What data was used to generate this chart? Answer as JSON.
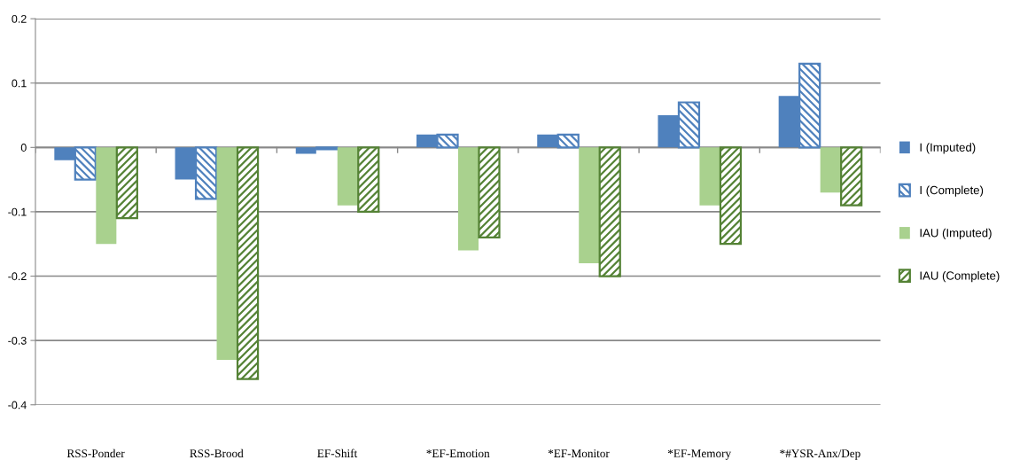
{
  "chart_data": {
    "type": "bar",
    "categories": [
      "RSS-Ponder",
      "RSS-Brood",
      "EF-Shift",
      "*EF-Emotion",
      "*EF-Monitor",
      "*EF-Memory",
      "*#YSR-Anx/Dep"
    ],
    "series": [
      {
        "name": "I (Imputed)",
        "color": "#4f81bd",
        "values": [
          -0.02,
          -0.05,
          -0.01,
          0.02,
          0.02,
          0.05,
          0.08
        ]
      },
      {
        "name": "I (Complete)",
        "color": "#4f81bd",
        "values": [
          -0.05,
          -0.08,
          -0.003,
          0.02,
          0.02,
          0.07,
          0.13
        ]
      },
      {
        "name": "IAU (Imputed)",
        "color": "#a9d18e",
        "values": [
          -0.15,
          -0.33,
          -0.09,
          -0.16,
          -0.18,
          -0.09,
          -0.07
        ]
      },
      {
        "name": "IAU (Complete)",
        "color": "#548235",
        "values": [
          -0.11,
          -0.36,
          -0.1,
          -0.14,
          -0.2,
          -0.15,
          -0.09
        ]
      }
    ],
    "ylim": [
      -0.4,
      0.2
    ],
    "yticks": [
      0.2,
      0.1,
      0,
      {
        "value": -0.1,
        "label": "-0.1"
      },
      {
        "value": -0.2,
        "label": "-0.2"
      },
      {
        "value": -0.3,
        "label": "-0.3"
      },
      {
        "value": -0.4,
        "label": "-0.4"
      }
    ],
    "grid": "y",
    "legend": "right"
  }
}
